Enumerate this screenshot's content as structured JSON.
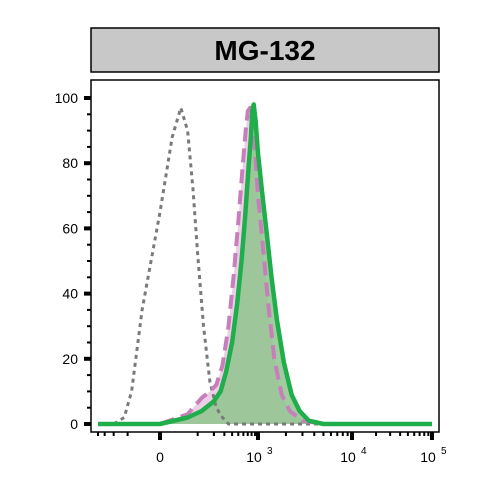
{
  "chart_data": {
    "type": "area",
    "title": "MG-132",
    "xlabel": "",
    "ylabel": "",
    "x_scale": "biexponential",
    "xlim": [
      -400,
      100000
    ],
    "ylim": [
      0,
      100
    ],
    "grid": false,
    "legend": "none",
    "y_ticks": [
      {
        "value": 0,
        "label": "0"
      },
      {
        "value": 20,
        "label": "20"
      },
      {
        "value": 40,
        "label": "40"
      },
      {
        "value": 60,
        "label": "60"
      },
      {
        "value": 80,
        "label": "80"
      },
      {
        "value": 100,
        "label": "100"
      }
    ],
    "x_ticks": [
      {
        "value": 0,
        "base": "0",
        "exp": ""
      },
      {
        "value": 1000,
        "base": "10",
        "exp": "3"
      },
      {
        "value": 10000,
        "base": "10",
        "exp": "4"
      },
      {
        "value": 100000,
        "base": "10",
        "exp": "5"
      }
    ],
    "series": [
      {
        "color": "#7a7a7a",
        "style": "dotted",
        "fill": "none",
        "x": [
          -400,
          -200,
          -120,
          -80,
          -40,
          0,
          20,
          40,
          60,
          80,
          100,
          130,
          170,
          220,
          280,
          350,
          1000,
          100000
        ],
        "y": [
          0,
          0,
          2,
          10,
          35,
          65,
          88,
          97,
          90,
          72,
          52,
          30,
          13,
          5,
          2,
          0,
          0,
          0
        ]
      },
      {
        "color": "#c77fbc",
        "style": "dashed",
        "fill": "#e9c7e2",
        "x": [
          -400,
          0,
          60,
          120,
          170,
          220,
          280,
          350,
          420,
          500,
          580,
          650,
          700,
          760,
          820,
          900,
          1000,
          1100,
          1300,
          1500,
          1800,
          2200,
          3000,
          5000,
          100000
        ],
        "y": [
          0,
          0,
          3,
          8,
          10,
          12,
          18,
          30,
          45,
          62,
          78,
          90,
          96,
          97,
          92,
          84,
          70,
          58,
          36,
          20,
          9,
          4,
          1,
          0,
          0
        ]
      },
      {
        "color": "#1fae4b",
        "style": "solid",
        "fill": "#8fc48d",
        "x": [
          -400,
          0,
          60,
          120,
          200,
          260,
          320,
          400,
          480,
          560,
          640,
          720,
          780,
          820,
          860,
          920,
          1000,
          1100,
          1250,
          1400,
          1600,
          1900,
          2300,
          2800,
          3500,
          5000,
          100000
        ],
        "y": [
          0,
          0,
          2,
          4,
          7,
          10,
          16,
          25,
          37,
          50,
          64,
          79,
          88,
          96,
          98,
          93,
          83,
          72,
          58,
          45,
          32,
          19,
          9,
          4,
          1,
          0,
          0
        ]
      }
    ]
  }
}
